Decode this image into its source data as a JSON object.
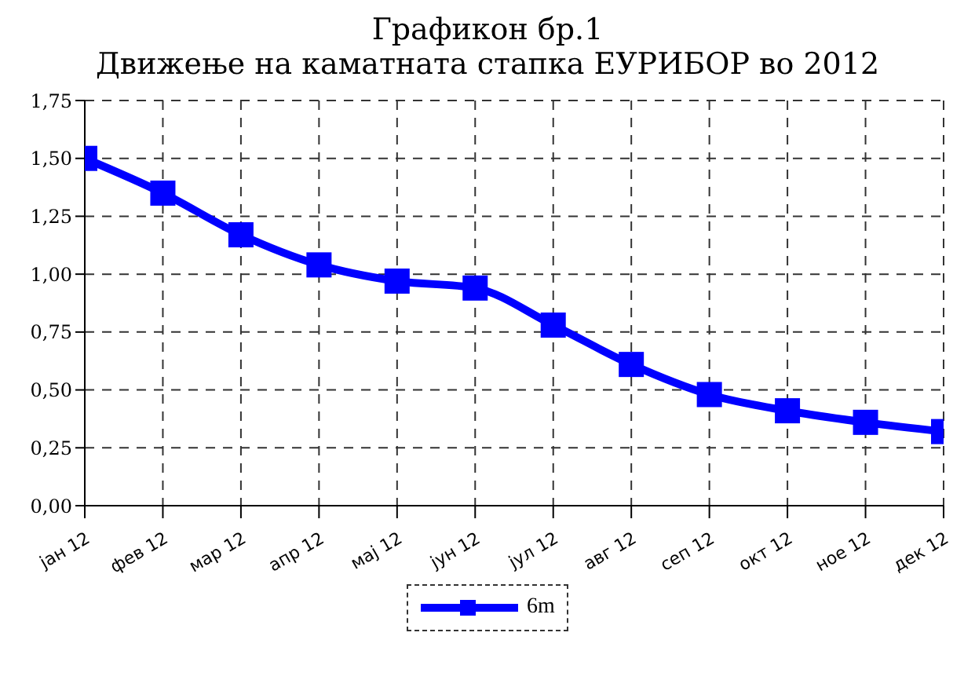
{
  "chart_data": {
    "type": "line",
    "title": "Графикон бр.1",
    "subtitle": "Движење на каматната стапка ЕУРИБОР во 2012",
    "categories": [
      "јан 12",
      "фев 12",
      "мар 12",
      "апр 12",
      "мај 12",
      "јун 12",
      "јул 12",
      "авг 12",
      "сеп 12",
      "окт 12",
      "ное 12",
      "дек 12"
    ],
    "series": [
      {
        "name": "6m",
        "color": "#0000ff",
        "values": [
          1.5,
          1.35,
          1.17,
          1.04,
          0.97,
          0.94,
          0.78,
          0.61,
          0.48,
          0.41,
          0.36,
          0.32
        ]
      }
    ],
    "ylim": [
      0,
      1.75
    ],
    "yticks": [
      {
        "value": 0,
        "label": "0,00"
      },
      {
        "value": 0.25,
        "label": "0,25"
      },
      {
        "value": 0.5,
        "label": "0,50"
      },
      {
        "value": 0.75,
        "label": "0,75"
      },
      {
        "value": 1,
        "label": "1,00"
      },
      {
        "value": 1.25,
        "label": "1,25"
      },
      {
        "value": 1.5,
        "label": "1,50"
      },
      {
        "value": 1.75,
        "label": "1,75"
      }
    ],
    "grid": true,
    "legend": "bottom",
    "marker": "square",
    "line_style": "solid"
  }
}
